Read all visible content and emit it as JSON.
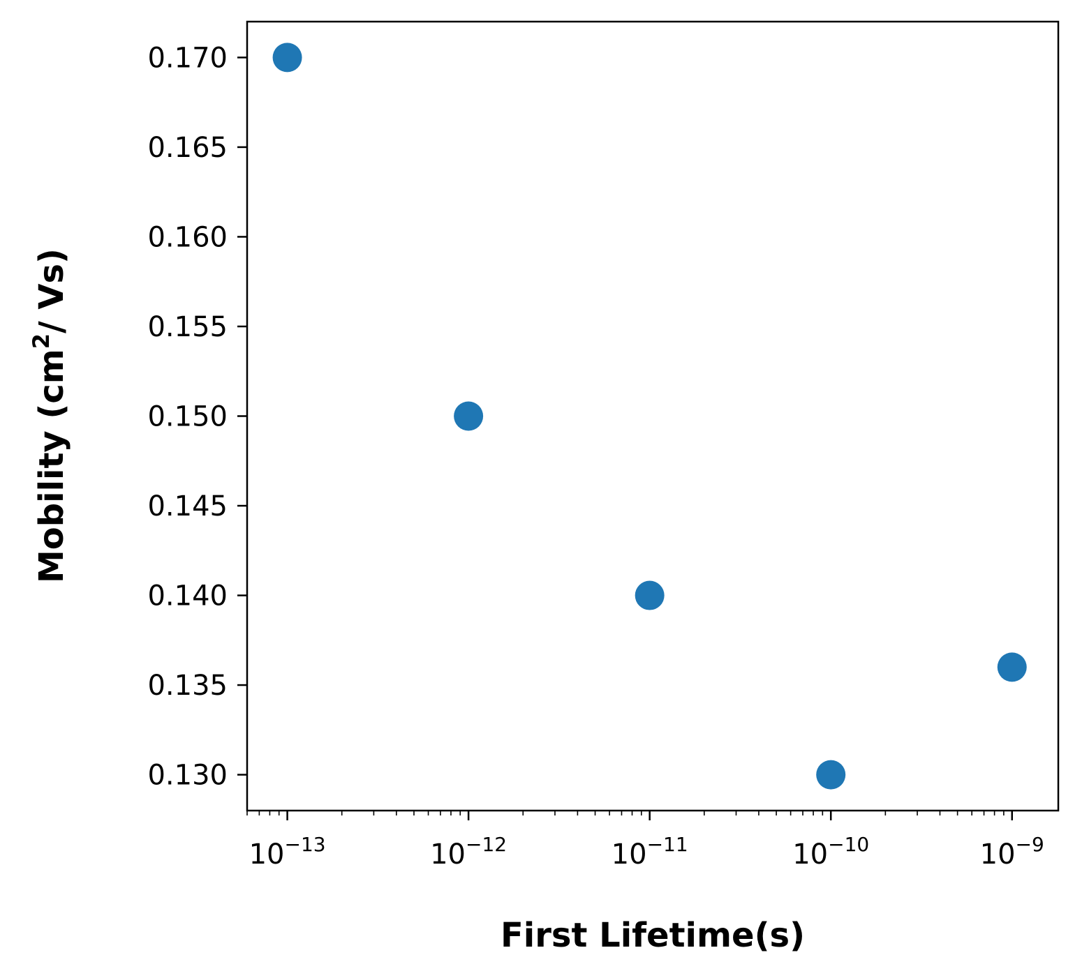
{
  "chart_data": {
    "type": "scatter",
    "xlabel": "First Lifetime(s)",
    "ylabel": {
      "text": "Mobility (cm",
      "superscript": "2",
      "suffix": "/ Vs)"
    },
    "x_scale": "log",
    "xlim": [
      6e-14,
      1.8e-09
    ],
    "ylim": [
      0.128,
      0.172
    ],
    "x_ticks": [
      {
        "base": "10",
        "exponent": "−13",
        "value": 1e-13
      },
      {
        "base": "10",
        "exponent": "−12",
        "value": 1e-12
      },
      {
        "base": "10",
        "exponent": "−11",
        "value": 1e-11
      },
      {
        "base": "10",
        "exponent": "−10",
        "value": 1e-10
      },
      {
        "base": "10",
        "exponent": "−9",
        "value": 1e-09
      }
    ],
    "y_ticks": [
      {
        "label": "0.130",
        "value": 0.13
      },
      {
        "label": "0.135",
        "value": 0.135
      },
      {
        "label": "0.140",
        "value": 0.14
      },
      {
        "label": "0.145",
        "value": 0.145
      },
      {
        "label": "0.150",
        "value": 0.15
      },
      {
        "label": "0.155",
        "value": 0.155
      },
      {
        "label": "0.160",
        "value": 0.16
      },
      {
        "label": "0.165",
        "value": 0.165
      },
      {
        "label": "0.170",
        "value": 0.17
      }
    ],
    "grid": false,
    "legend": "none",
    "color": "#1f77b4",
    "points": [
      {
        "x": 1e-13,
        "y": 0.17
      },
      {
        "x": 1e-12,
        "y": 0.15
      },
      {
        "x": 1e-11,
        "y": 0.14
      },
      {
        "x": 1e-10,
        "y": 0.13
      },
      {
        "x": 1e-09,
        "y": 0.136
      }
    ]
  }
}
